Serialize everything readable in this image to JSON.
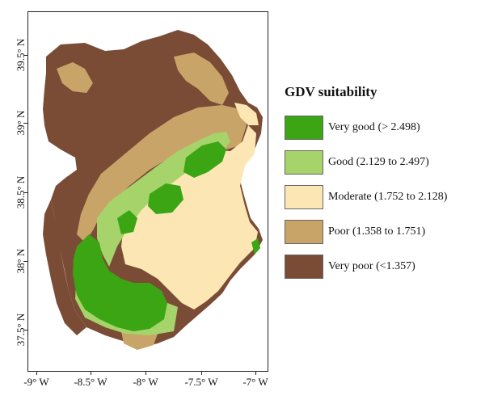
{
  "legend": {
    "title": "GDV suitability",
    "classes": [
      {
        "label": "Very good",
        "range": "(> 2.498)",
        "color": "#3ca514"
      },
      {
        "label": "Good",
        "range": "(2.129 to 2.497)",
        "color": "#a6d36a"
      },
      {
        "label": "Moderate",
        "range": "(1.752 to 2.128)",
        "color": "#fce7b4"
      },
      {
        "label": "Poor",
        "range": "(1.358 to 1.751)",
        "color": "#c9a468"
      },
      {
        "label": "Very poor",
        "range": "(<1.357)",
        "color": "#7a4c36"
      }
    ]
  },
  "axes": {
    "x_ticks": [
      "-9° W",
      "-8.5° W",
      "-8° W",
      "-7.5° W",
      "-7° W"
    ],
    "y_ticks": [
      "39.5° N",
      "39° N",
      "38.5° N",
      "38° N",
      "37.5° N"
    ]
  }
}
